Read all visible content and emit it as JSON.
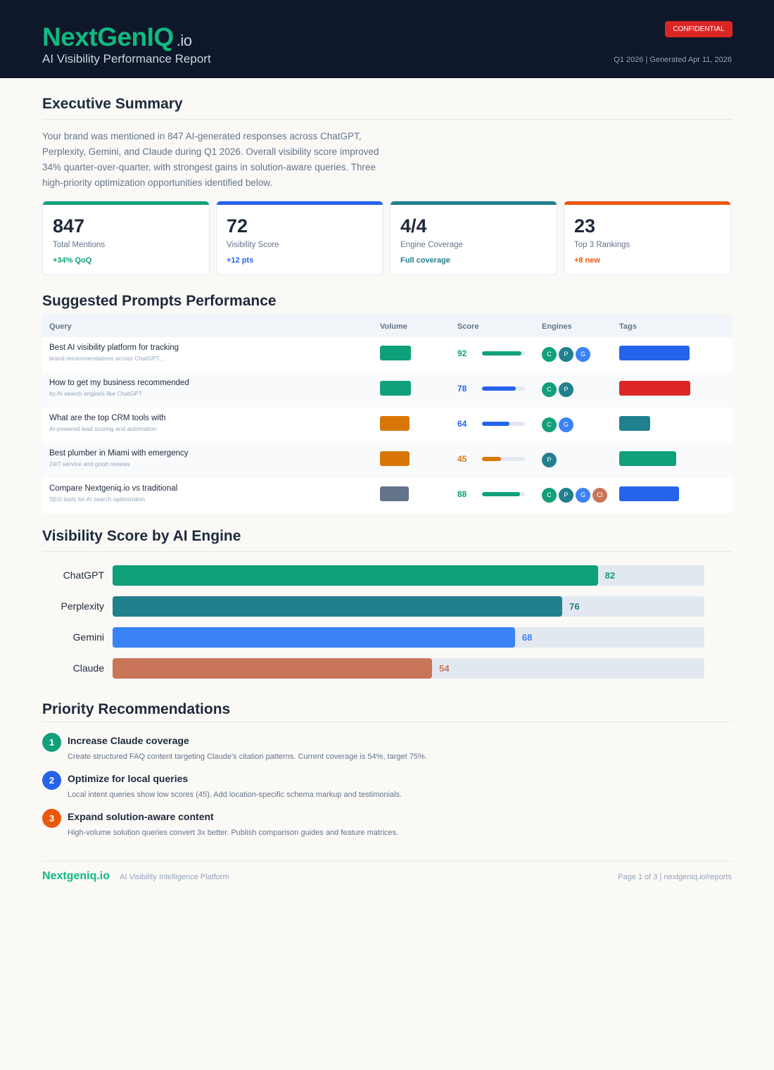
{
  "header": {
    "logo_main": "NextGenIQ",
    "logo_tld": ".io",
    "subtitle": "AI Visibility Performance Report",
    "badge": "CONFIDENTIAL",
    "meta": "Q1 2026  |  Generated Apr 11, 2026"
  },
  "summary": {
    "title": "Executive Summary",
    "text": "Your brand was mentioned in 847 AI-generated responses across ChatGPT, Perplexity, Gemini, and Claude during Q1 2026. Overall visibility score improved 34% quarter-over-quarter, with strongest gains in solution-aware queries. Three high-priority optimization opportunities identified below."
  },
  "stats": [
    {
      "value": "847",
      "label": "Total Mentions",
      "delta": "+34% QoQ",
      "color": "#10a07a"
    },
    {
      "value": "72",
      "label": "Visibility Score",
      "delta": "+12 pts",
      "color": "#2563eb"
    },
    {
      "value": "4/4",
      "label": "Engine Coverage",
      "delta": "Full coverage",
      "color": "#21808d"
    },
    {
      "value": "23",
      "label": "Top 3 Rankings",
      "delta": "+8 new",
      "color": "#ea580c"
    }
  ],
  "prompts": {
    "title": "Suggested Prompts Performance",
    "columns": [
      "Query",
      "Volume",
      "Score",
      "Engines",
      "Tags"
    ],
    "rows": [
      {
        "query": "Best AI visibility platform for tracking",
        "sub": "brand recommendations across ChatGPT...",
        "volume_color": "#10a07a",
        "score": 92,
        "score_color": "#10a07a",
        "engines": [
          "C",
          "P",
          "G"
        ],
        "tag_color": "#2563eb"
      },
      {
        "query": "How to get my business recommended",
        "sub": "by AI search engines like ChatGPT",
        "volume_color": "#10a07a",
        "score": 78,
        "score_color": "#2563eb",
        "engines": [
          "C",
          "P"
        ],
        "tag_color": "#dc2626"
      },
      {
        "query": "What are the top CRM tools with",
        "sub": "AI-powered lead scoring and automation",
        "volume_color": "#d97706",
        "score": 64,
        "score_color": "#2563eb",
        "engines": [
          "C",
          "G"
        ],
        "tag_color": "#21808d"
      },
      {
        "query": "Best plumber in Miami with emergency",
        "sub": "24/7 service and good reviews",
        "volume_color": "#d97706",
        "score": 45,
        "score_color": "#d97706",
        "engines": [
          "P"
        ],
        "tag_color": "#10a07a"
      },
      {
        "query": "Compare Nextgeniq.io vs traditional",
        "sub": "SEO tools for AI search optimization",
        "volume_color": "#64748b",
        "score": 88,
        "score_color": "#10a07a",
        "engines": [
          "C",
          "P",
          "G",
          "Cl"
        ],
        "tag_color": "#2563eb"
      }
    ]
  },
  "engine_colors": {
    "C": "#10a07a",
    "P": "#21808d",
    "G": "#3b82f6",
    "Cl": "#c97559"
  },
  "chart_data": {
    "type": "bar",
    "orientation": "horizontal",
    "title": "Visibility Score by AI Engine",
    "categories": [
      "ChatGPT",
      "Perplexity",
      "Gemini",
      "Claude"
    ],
    "values": [
      82,
      76,
      68,
      54
    ],
    "xlim": [
      0,
      100
    ],
    "colors": [
      "#10a07a",
      "#21808d",
      "#3b82f6",
      "#c97559"
    ]
  },
  "recommendations": {
    "title": "Priority Recommendations",
    "items": [
      {
        "num": "1",
        "title": "Increase Claude coverage",
        "desc": "Create structured FAQ content targeting Claude's citation patterns. Current coverage is 54%, target 75%.",
        "color": "#10a07a"
      },
      {
        "num": "2",
        "title": "Optimize for local queries",
        "desc": "Local intent queries show low scores (45). Add location-specific schema markup and testimonials.",
        "color": "#2563eb"
      },
      {
        "num": "3",
        "title": "Expand solution-aware content",
        "desc": "High-volume solution queries convert 3x better. Publish comparison guides and feature matrices.",
        "color": "#ea580c"
      }
    ]
  },
  "footer": {
    "logo": "Nextgeniq.io",
    "tagline": "AI Visibility Intelligence Platform",
    "right": "Page 1 of 3  |  nextgeniq.io/reports"
  }
}
